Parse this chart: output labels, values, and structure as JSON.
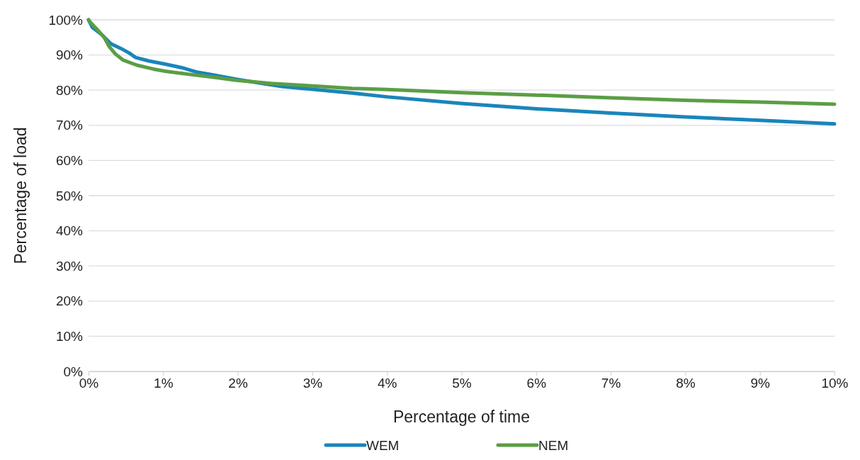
{
  "chart_data": {
    "type": "line",
    "xlabel": "Percentage of time",
    "ylabel": "Percentage of load",
    "xlim": [
      0,
      10
    ],
    "ylim": [
      0,
      100
    ],
    "xticks": [
      {
        "value": 0,
        "label": "0%"
      },
      {
        "value": 1,
        "label": "1%"
      },
      {
        "value": 2,
        "label": "2%"
      },
      {
        "value": 3,
        "label": "3%"
      },
      {
        "value": 4,
        "label": "4%"
      },
      {
        "value": 5,
        "label": "5%"
      },
      {
        "value": 6,
        "label": "6%"
      },
      {
        "value": 7,
        "label": "7%"
      },
      {
        "value": 8,
        "label": "8%"
      },
      {
        "value": 9,
        "label": "9%"
      },
      {
        "value": 10,
        "label": "10%"
      }
    ],
    "yticks": [
      {
        "value": 0,
        "label": "0%"
      },
      {
        "value": 10,
        "label": "10%"
      },
      {
        "value": 20,
        "label": "20%"
      },
      {
        "value": 30,
        "label": "30%"
      },
      {
        "value": 40,
        "label": "40%"
      },
      {
        "value": 50,
        "label": "50%"
      },
      {
        "value": 60,
        "label": "60%"
      },
      {
        "value": 70,
        "label": "70%"
      },
      {
        "value": 80,
        "label": "80%"
      },
      {
        "value": 90,
        "label": "90%"
      },
      {
        "value": 100,
        "label": "100%"
      }
    ],
    "grid": "y",
    "legend": "bottom",
    "marker": "none",
    "line_style": "solid",
    "series": [
      {
        "name": "WEM",
        "color": "#1a85bb",
        "x": [
          0,
          0.05,
          0.17,
          0.3,
          0.43,
          0.55,
          0.63,
          0.81,
          1.03,
          1.25,
          1.44,
          1.66,
          1.98,
          2.3,
          2.61,
          2.93,
          3.53,
          4,
          5,
          6,
          7,
          8,
          9,
          10
        ],
        "values": [
          100,
          97.9,
          95.9,
          93.2,
          91.9,
          90.5,
          89.3,
          88.3,
          87.4,
          86.4,
          85.2,
          84.4,
          83.1,
          82.0,
          81.0,
          80.4,
          79.2,
          78.1,
          76.2,
          74.7,
          73.5,
          72.4,
          71.4,
          70.4
        ]
      },
      {
        "name": "NEM",
        "color": "#5b9e45",
        "x": [
          0,
          0.02,
          0.11,
          0.21,
          0.28,
          0.36,
          0.46,
          0.65,
          0.87,
          1.03,
          1.35,
          1.66,
          1.98,
          2.45,
          2.93,
          3.53,
          4,
          5,
          6,
          7,
          8,
          9,
          10
        ],
        "values": [
          100,
          99.4,
          97.4,
          95.0,
          92.3,
          90.3,
          88.6,
          87.1,
          86.0,
          85.4,
          84.5,
          83.7,
          82.8,
          81.9,
          81.3,
          80.5,
          80.2,
          79.3,
          78.6,
          77.8,
          77.1,
          76.6,
          76.0
        ]
      }
    ]
  }
}
